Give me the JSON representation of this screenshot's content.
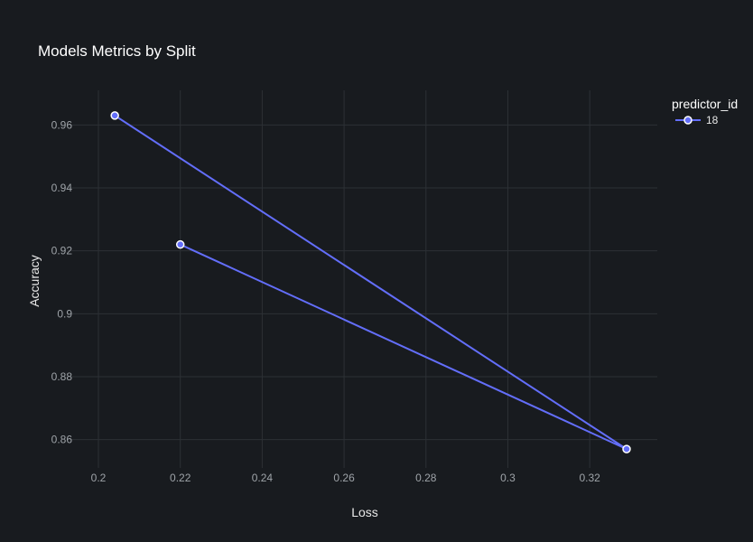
{
  "chart_data": {
    "type": "line",
    "title": "Models Metrics by Split",
    "xlabel": "Loss",
    "ylabel": "Accuracy",
    "xlim": [
      0.1925,
      0.3365
    ],
    "ylim": [
      0.851,
      0.971
    ],
    "xticks": [
      0.2,
      0.22,
      0.24,
      0.26,
      0.28,
      0.3,
      0.32
    ],
    "xtick_labels": [
      "0.2",
      "0.22",
      "0.24",
      "0.26",
      "0.28",
      "0.3",
      "0.32"
    ],
    "yticks": [
      0.86,
      0.88,
      0.9,
      0.92,
      0.94,
      0.96
    ],
    "ytick_labels": [
      "0.86",
      "0.88",
      "0.9",
      "0.92",
      "0.94",
      "0.96"
    ],
    "grid": true,
    "legend": {
      "title": "predictor_id",
      "position": "top-right"
    },
    "series": [
      {
        "name": "18",
        "color": "#636efa",
        "points": [
          {
            "x": 0.204,
            "y": 0.963
          },
          {
            "x": 0.329,
            "y": 0.857
          },
          {
            "x": 0.22,
            "y": 0.922
          }
        ]
      }
    ]
  }
}
